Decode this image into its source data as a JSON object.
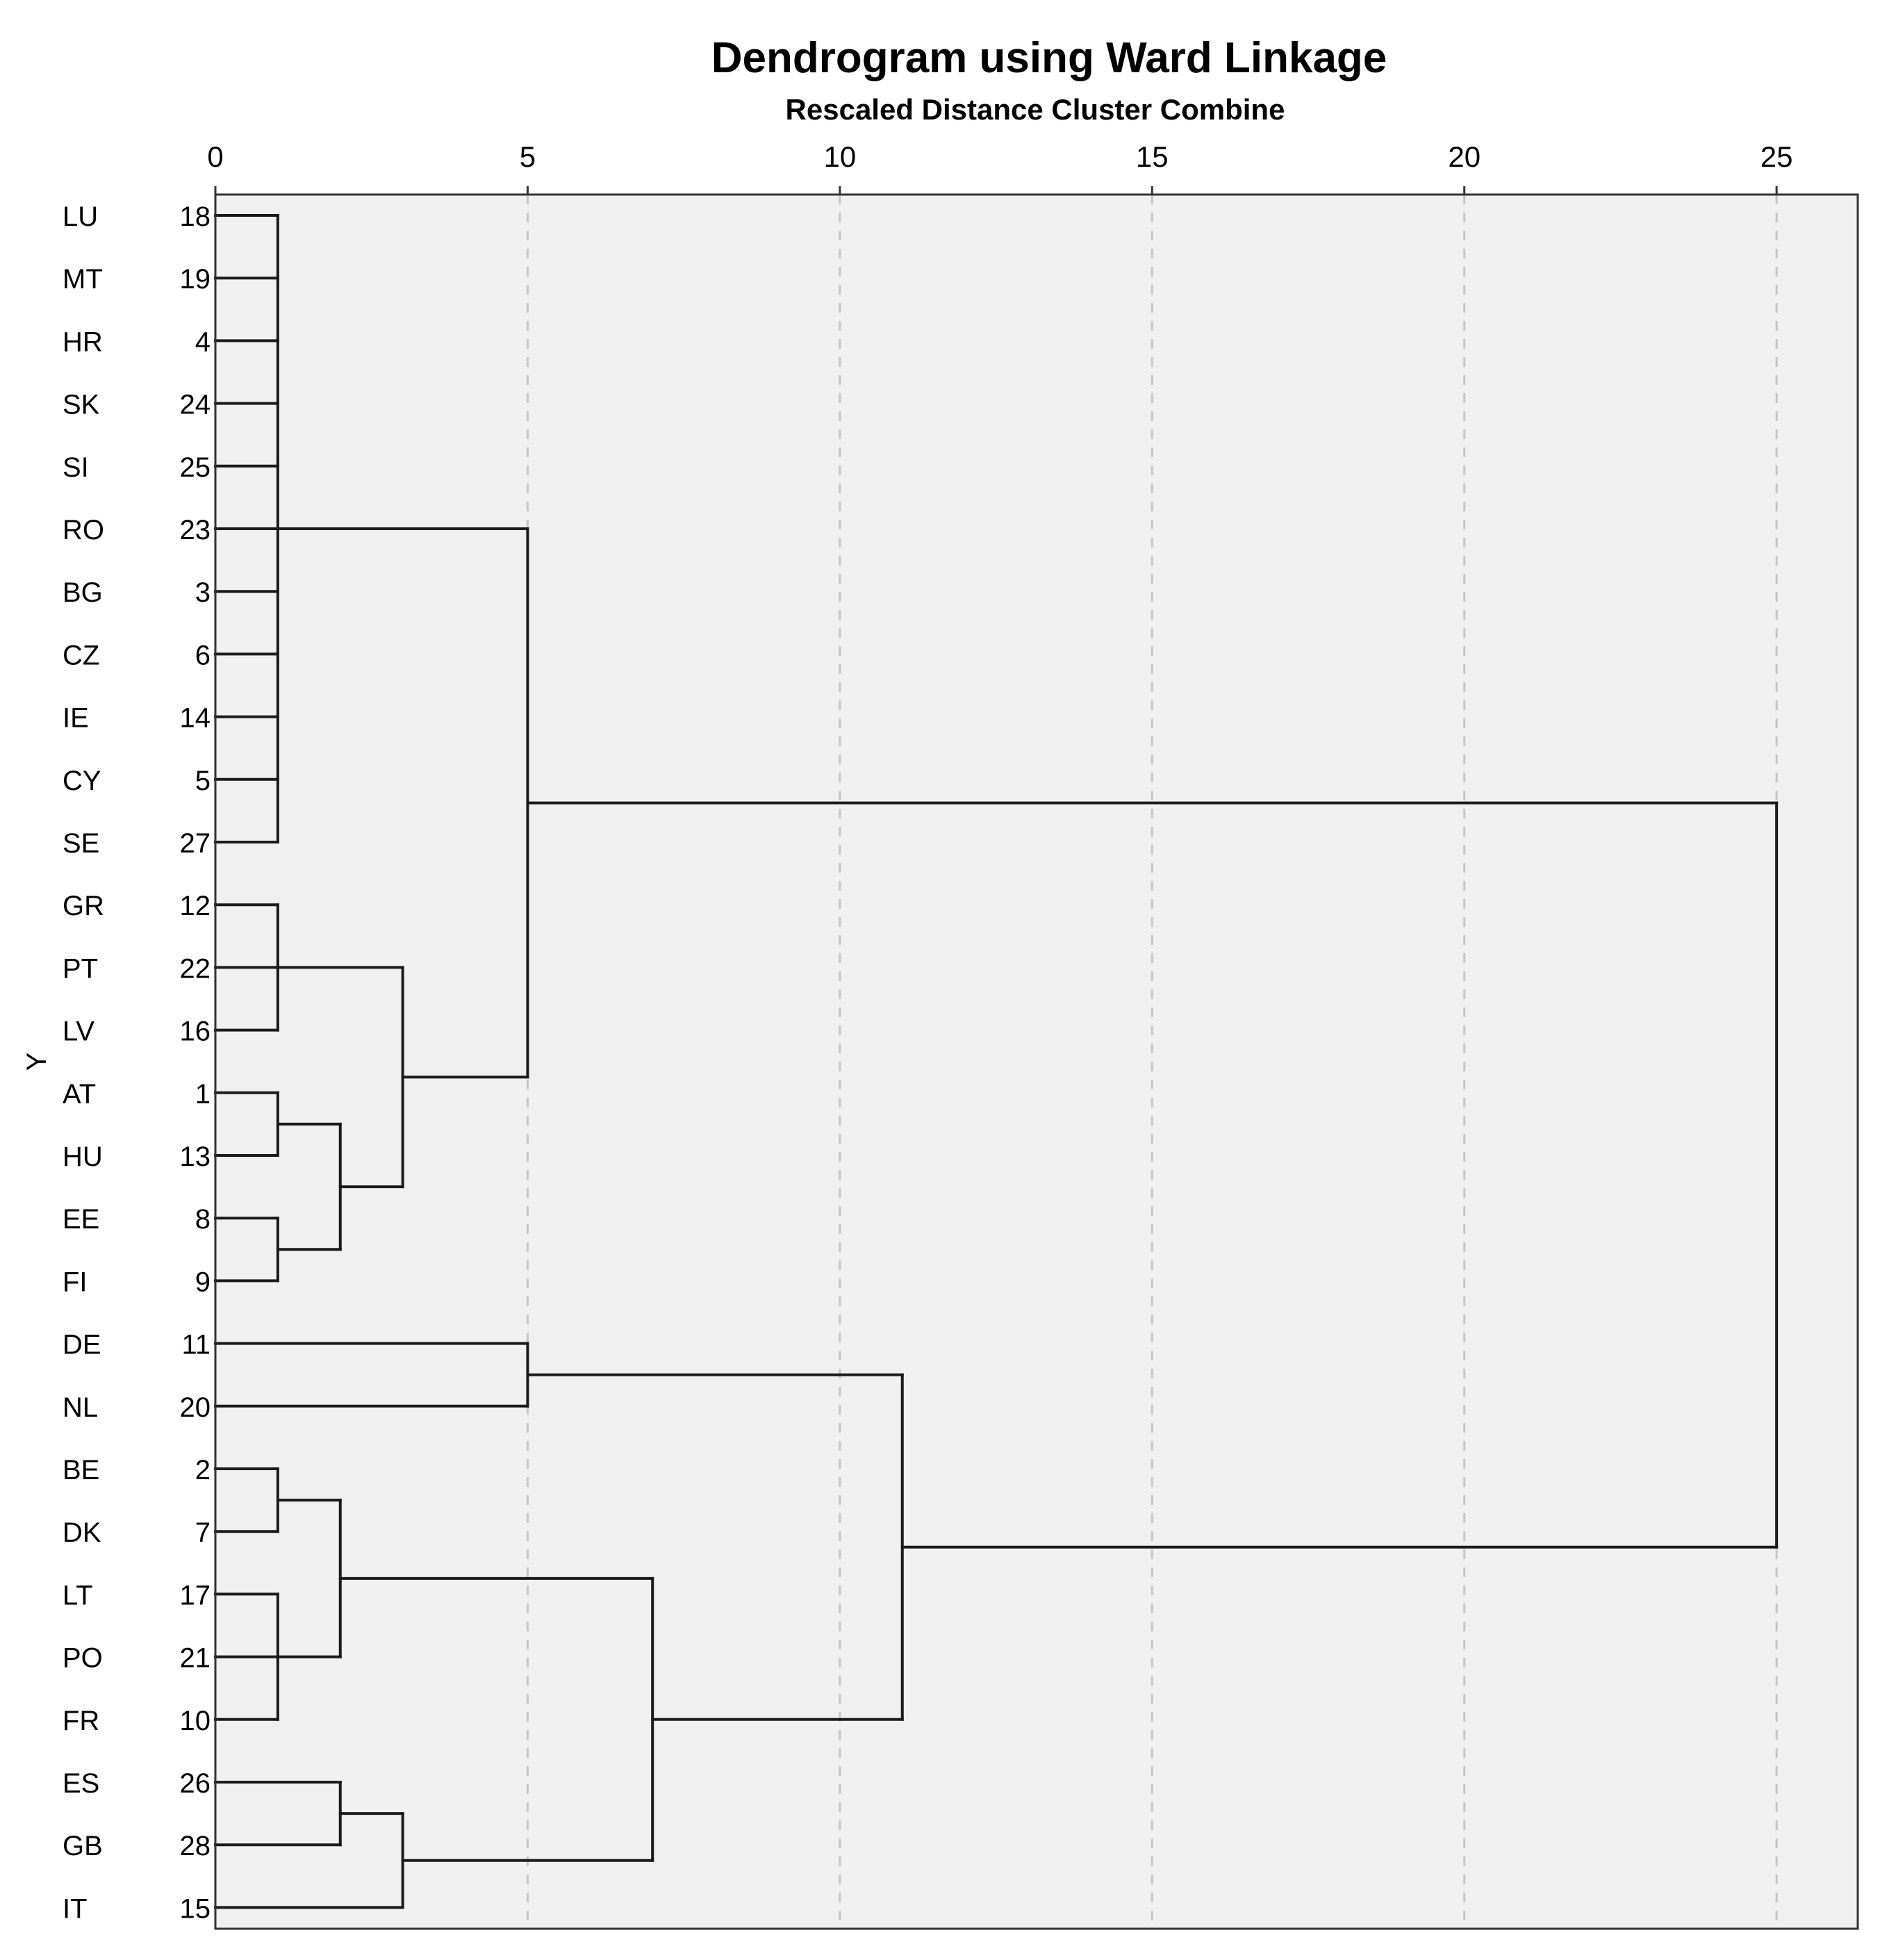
{
  "chart_data": {
    "type": "dendrogram",
    "title": "Dendrogram using Ward Linkage",
    "subtitle": "Rescaled Distance Cluster Combine",
    "xlabel": "Rescaled Distance Cluster Combine",
    "ylabel": "Y",
    "xlim": [
      0,
      26.3
    ],
    "xticks": [
      "0",
      "5",
      "10",
      "15",
      "20",
      "25"
    ],
    "xtick_values": [
      0,
      5,
      10,
      15,
      20,
      25
    ],
    "grid": "dashed vertical at ticks",
    "leaves": [
      {
        "name": "LU",
        "id": "18"
      },
      {
        "name": "MT",
        "id": "19"
      },
      {
        "name": "HR",
        "id": "4"
      },
      {
        "name": "SK",
        "id": "24"
      },
      {
        "name": "SI",
        "id": "25"
      },
      {
        "name": "RO",
        "id": "23"
      },
      {
        "name": "BG",
        "id": "3"
      },
      {
        "name": "CZ",
        "id": "6"
      },
      {
        "name": "IE",
        "id": "14"
      },
      {
        "name": "CY",
        "id": "5"
      },
      {
        "name": "SE",
        "id": "27"
      },
      {
        "name": "GR",
        "id": "12"
      },
      {
        "name": "PT",
        "id": "22"
      },
      {
        "name": "LV",
        "id": "16"
      },
      {
        "name": "AT",
        "id": "1"
      },
      {
        "name": "HU",
        "id": "13"
      },
      {
        "name": "EE",
        "id": "8"
      },
      {
        "name": "FI",
        "id": "9"
      },
      {
        "name": "DE",
        "id": "11"
      },
      {
        "name": "NL",
        "id": "20"
      },
      {
        "name": "BE",
        "id": "2"
      },
      {
        "name": "DK",
        "id": "7"
      },
      {
        "name": "LT",
        "id": "17"
      },
      {
        "name": "PO",
        "id": "21"
      },
      {
        "name": "FR",
        "id": "10"
      },
      {
        "name": "ES",
        "id": "26"
      },
      {
        "name": "GB",
        "id": "28"
      },
      {
        "name": "IT",
        "id": "15"
      }
    ],
    "merges": [
      {
        "id": "c1",
        "height": 1,
        "children": [
          "LU",
          "MT",
          "HR",
          "SK",
          "SI",
          "RO",
          "BG",
          "CZ",
          "IE",
          "CY",
          "SE"
        ]
      },
      {
        "id": "c2",
        "height": 1,
        "children": [
          "GR",
          "PT",
          "LV"
        ]
      },
      {
        "id": "c3",
        "height": 1,
        "children": [
          "AT",
          "HU"
        ]
      },
      {
        "id": "c4",
        "height": 1,
        "children": [
          "EE",
          "FI"
        ]
      },
      {
        "id": "c5",
        "height": 2,
        "children": [
          "c3",
          "c4"
        ]
      },
      {
        "id": "c6",
        "height": 3,
        "children": [
          "c2",
          "c5"
        ]
      },
      {
        "id": "c7",
        "height": 5,
        "children": [
          "c1",
          "c6"
        ]
      },
      {
        "id": "c8",
        "height": 5,
        "children": [
          "DE",
          "NL"
        ]
      },
      {
        "id": "c9",
        "height": 1,
        "children": [
          "BE",
          "DK"
        ]
      },
      {
        "id": "c10",
        "height": 1,
        "children": [
          "LT",
          "PO",
          "FR"
        ]
      },
      {
        "id": "c11",
        "height": 2,
        "children": [
          "c9",
          "c10"
        ]
      },
      {
        "id": "c12",
        "height": 2,
        "children": [
          "ES",
          "GB"
        ]
      },
      {
        "id": "c13",
        "height": 3,
        "children": [
          "c12",
          "IT"
        ]
      },
      {
        "id": "c14",
        "height": 7,
        "children": [
          "c11",
          "c13"
        ]
      },
      {
        "id": "c15",
        "height": 11,
        "children": [
          "c8",
          "c14"
        ]
      },
      {
        "id": "c16",
        "height": 25,
        "children": [
          "c7",
          "c15"
        ]
      }
    ]
  }
}
